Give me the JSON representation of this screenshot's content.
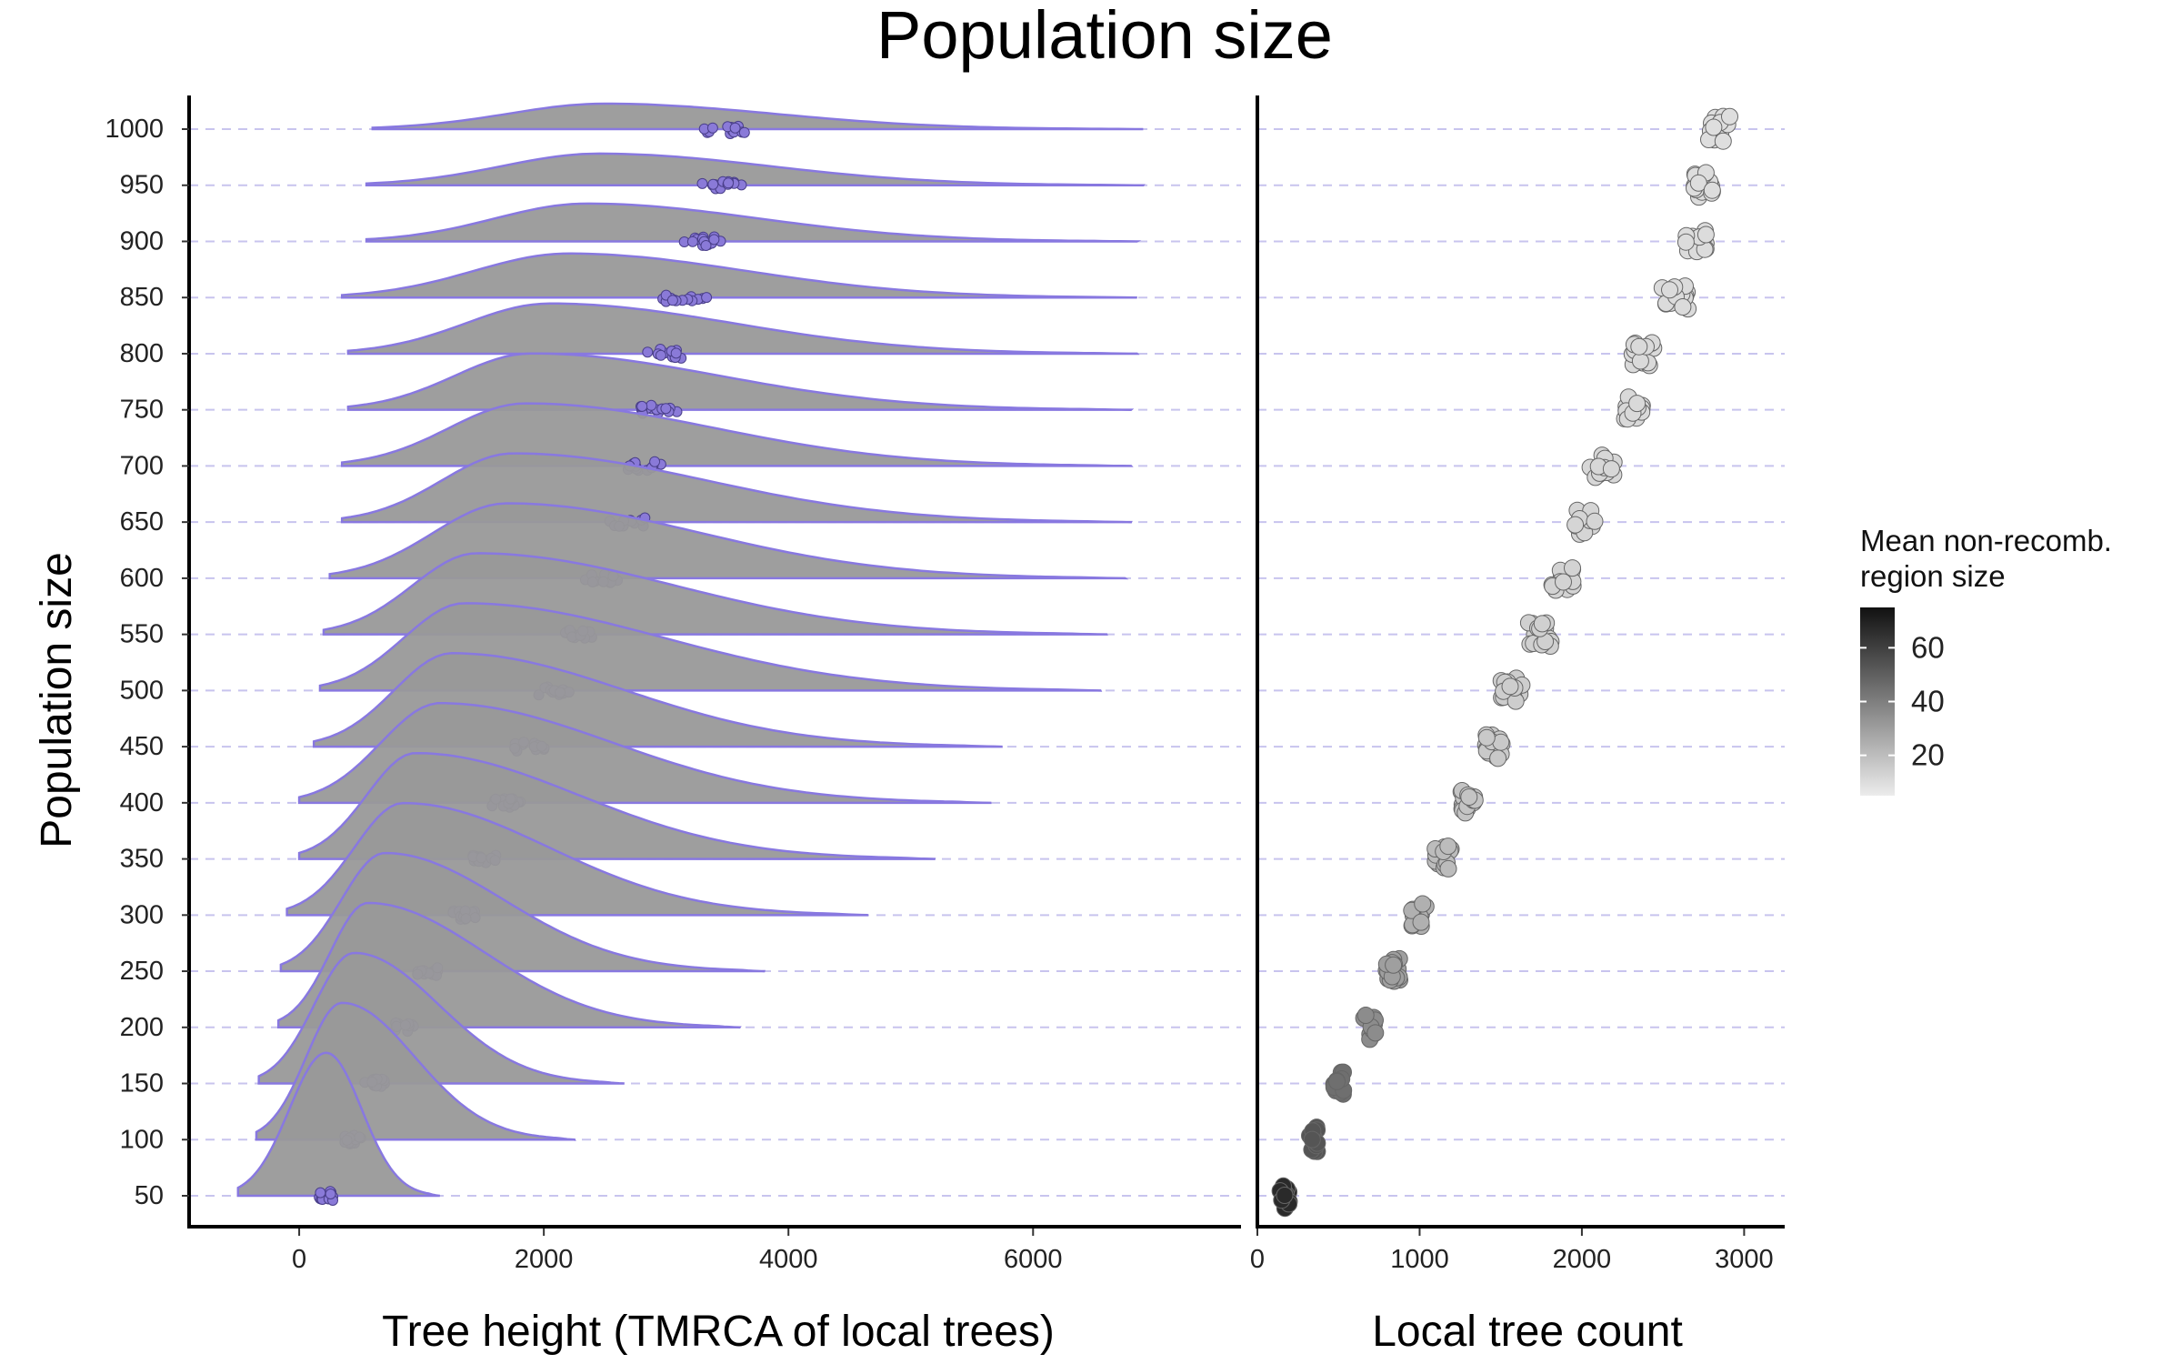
{
  "chart_data": {
    "title": "Population size",
    "ylabel": "Population size",
    "categories": [
      50,
      100,
      150,
      200,
      250,
      300,
      350,
      400,
      450,
      500,
      550,
      600,
      650,
      700,
      750,
      800,
      850,
      900,
      950,
      1000
    ],
    "panels": [
      {
        "type": "ridgeline",
        "xlabel": "Tree height (TMRCA of local trees)",
        "xticks": [
          0,
          2000,
          4000,
          6000
        ],
        "xlim": [
          -900,
          7700
        ],
        "ridge_fill": "#999999",
        "ridge_line": "#8878e0",
        "point_fill": "#8a7ad8",
        "series": [
          {
            "pop": 50,
            "mode": 220,
            "xmin": -500,
            "xmax": 1150,
            "points_center": 220
          },
          {
            "pop": 100,
            "mode": 350,
            "xmin": -350,
            "xmax": 2250,
            "points_center": 440
          },
          {
            "pop": 150,
            "mode": 450,
            "xmin": -330,
            "xmax": 2650,
            "points_center": 620
          },
          {
            "pop": 200,
            "mode": 560,
            "xmin": -170,
            "xmax": 3600,
            "points_center": 850
          },
          {
            "pop": 250,
            "mode": 700,
            "xmin": -150,
            "xmax": 3800,
            "points_center": 1040
          },
          {
            "pop": 300,
            "mode": 850,
            "xmin": -100,
            "xmax": 4650,
            "points_center": 1350
          },
          {
            "pop": 350,
            "mode": 950,
            "xmin": 0,
            "xmax": 5200,
            "points_center": 1530
          },
          {
            "pop": 400,
            "mode": 1150,
            "xmin": 0,
            "xmax": 5650,
            "points_center": 1690
          },
          {
            "pop": 450,
            "mode": 1250,
            "xmin": 120,
            "xmax": 5750,
            "points_center": 1880
          },
          {
            "pop": 500,
            "mode": 1350,
            "xmin": 170,
            "xmax": 6550,
            "points_center": 2080
          },
          {
            "pop": 550,
            "mode": 1450,
            "xmin": 200,
            "xmax": 6600,
            "points_center": 2300
          },
          {
            "pop": 600,
            "mode": 1700,
            "xmin": 250,
            "xmax": 6750,
            "points_center": 2480
          },
          {
            "pop": 650,
            "mode": 1750,
            "xmin": 350,
            "xmax": 6800,
            "points_center": 2680
          },
          {
            "pop": 700,
            "mode": 1850,
            "xmin": 350,
            "xmax": 6800,
            "points_center": 2820
          },
          {
            "pop": 750,
            "mode": 1900,
            "xmin": 400,
            "xmax": 6800,
            "points_center": 2930
          },
          {
            "pop": 800,
            "mode": 2050,
            "xmin": 400,
            "xmax": 6850,
            "points_center": 3020
          },
          {
            "pop": 850,
            "mode": 2200,
            "xmin": 350,
            "xmax": 6850,
            "points_center": 3150
          },
          {
            "pop": 900,
            "mode": 2350,
            "xmin": 550,
            "xmax": 6850,
            "points_center": 3330
          },
          {
            "pop": 950,
            "mode": 2450,
            "xmin": 550,
            "xmax": 6900,
            "points_center": 3430
          },
          {
            "pop": 1000,
            "mode": 2500,
            "xmin": 600,
            "xmax": 6900,
            "points_center": 3470
          }
        ]
      },
      {
        "type": "scatter",
        "xlabel": "Local tree count",
        "xticks": [
          0,
          1000,
          2000,
          3000
        ],
        "xlim": [
          0,
          3250
        ],
        "series": [
          {
            "pop": 50,
            "center": 170,
            "spread": 60,
            "color": "#2a2a2a"
          },
          {
            "pop": 100,
            "center": 340,
            "spread": 60,
            "color": "#555555"
          },
          {
            "pop": 150,
            "center": 500,
            "spread": 70,
            "color": "#6f6f6f"
          },
          {
            "pop": 200,
            "center": 690,
            "spread": 80,
            "color": "#8c8c8c"
          },
          {
            "pop": 250,
            "center": 840,
            "spread": 90,
            "color": "#9f9f9f"
          },
          {
            "pop": 300,
            "center": 1000,
            "spread": 100,
            "color": "#b0b0b0"
          },
          {
            "pop": 350,
            "center": 1150,
            "spread": 110,
            "color": "#bcbcbc"
          },
          {
            "pop": 400,
            "center": 1300,
            "spread": 90,
            "color": "#c4c4c4"
          },
          {
            "pop": 450,
            "center": 1450,
            "spread": 120,
            "color": "#c9c9c9"
          },
          {
            "pop": 500,
            "center": 1570,
            "spread": 140,
            "color": "#cdcdcd"
          },
          {
            "pop": 550,
            "center": 1740,
            "spread": 140,
            "color": "#d0d0d0"
          },
          {
            "pop": 600,
            "center": 1880,
            "spread": 140,
            "color": "#d3d3d3"
          },
          {
            "pop": 650,
            "center": 2030,
            "spread": 150,
            "color": "#d5d5d5"
          },
          {
            "pop": 700,
            "center": 2130,
            "spread": 160,
            "color": "#d7d7d7"
          },
          {
            "pop": 750,
            "center": 2320,
            "spread": 120,
            "color": "#d9d9d9"
          },
          {
            "pop": 800,
            "center": 2400,
            "spread": 180,
            "color": "#dadada"
          },
          {
            "pop": 850,
            "center": 2560,
            "spread": 200,
            "color": "#dbdbdb"
          },
          {
            "pop": 900,
            "center": 2700,
            "spread": 140,
            "color": "#dcdcdc"
          },
          {
            "pop": 950,
            "center": 2750,
            "spread": 120,
            "color": "#dddddd"
          },
          {
            "pop": 1000,
            "center": 2850,
            "spread": 160,
            "color": "#dedede"
          }
        ]
      }
    ],
    "legend": {
      "title_line1": "Mean non-recomb.",
      "title_line2": "region size",
      "ticks": [
        20,
        40,
        60
      ],
      "range": [
        5,
        75
      ],
      "color_low": "#ececec",
      "color_high": "#111111",
      "position": "right"
    }
  }
}
